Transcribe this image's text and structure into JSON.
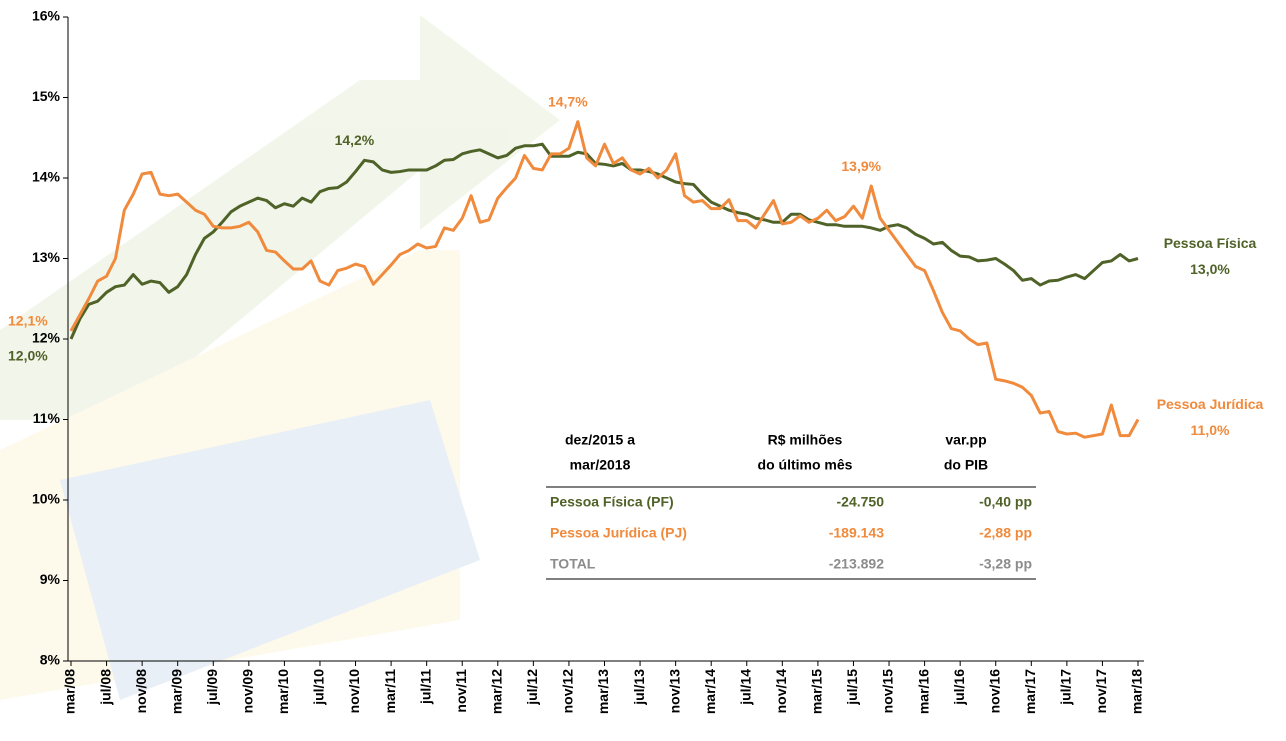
{
  "chart_data": {
    "type": "line",
    "categories": [
      "mar/08",
      null,
      null,
      null,
      "jul/08",
      null,
      null,
      null,
      "nov/08",
      null,
      null,
      null,
      "mar/09",
      null,
      null,
      null,
      "jul/09",
      null,
      null,
      null,
      "nov/09",
      null,
      null,
      null,
      "mar/10",
      null,
      null,
      null,
      "jul/10",
      null,
      null,
      null,
      "nov/10",
      null,
      null,
      null,
      "mar/11",
      null,
      null,
      null,
      "jul/11",
      null,
      null,
      null,
      "nov/11",
      null,
      null,
      null,
      "mar/12",
      null,
      null,
      null,
      "jul/12",
      null,
      null,
      null,
      "nov/12",
      null,
      null,
      null,
      "mar/13",
      null,
      null,
      null,
      "jul/13",
      null,
      null,
      null,
      "nov/13",
      null,
      null,
      null,
      "mar/14",
      null,
      null,
      null,
      "jul/14",
      null,
      null,
      null,
      "nov/14",
      null,
      null,
      null,
      "mar/15",
      null,
      null,
      null,
      "jul/15",
      null,
      null,
      null,
      "nov/15",
      null,
      null,
      null,
      "mar/16",
      null,
      null,
      null,
      "jul/16",
      null,
      null,
      null,
      "nov/16",
      null,
      null,
      null,
      "mar/17",
      null,
      null,
      null,
      "jul/17",
      null,
      null,
      null,
      "nov/17",
      null,
      null,
      null,
      "mar/18"
    ],
    "series": [
      {
        "name": "Pessoa Física",
        "color": "#4f6228",
        "values": [
          12.0,
          12.25,
          12.43,
          12.47,
          12.58,
          12.65,
          12.67,
          12.8,
          12.68,
          12.72,
          12.7,
          12.58,
          12.65,
          12.8,
          13.05,
          13.25,
          13.33,
          13.45,
          13.58,
          13.65,
          13.7,
          13.75,
          13.72,
          13.63,
          13.68,
          13.65,
          13.75,
          13.7,
          13.83,
          13.87,
          13.88,
          13.95,
          14.08,
          14.22,
          14.2,
          14.1,
          14.07,
          14.08,
          14.1,
          14.1,
          14.1,
          14.15,
          14.22,
          14.23,
          14.3,
          14.33,
          14.35,
          14.3,
          14.25,
          14.28,
          14.37,
          14.4,
          14.4,
          14.42,
          14.27,
          14.27,
          14.27,
          14.32,
          14.3,
          14.18,
          14.17,
          14.15,
          14.18,
          14.1,
          14.1,
          14.08,
          14.05,
          14.0,
          13.95,
          13.93,
          13.92,
          13.8,
          13.7,
          13.65,
          13.6,
          13.57,
          13.55,
          13.5,
          13.48,
          13.45,
          13.45,
          13.55,
          13.55,
          13.48,
          13.45,
          13.42,
          13.42,
          13.4,
          13.4,
          13.4,
          13.38,
          13.35,
          13.4,
          13.42,
          13.38,
          13.3,
          13.25,
          13.18,
          13.2,
          13.1,
          13.03,
          13.02,
          12.97,
          12.98,
          13.0,
          12.93,
          12.85,
          12.73,
          12.75,
          12.67,
          12.72,
          12.73,
          12.77,
          12.8,
          12.75,
          12.85,
          12.95,
          12.97,
          13.05,
          12.97,
          13.0
        ],
        "value_labels": [
          "12,0%",
          null,
          null,
          null,
          null,
          null,
          null,
          null,
          null,
          null,
          null,
          null,
          null,
          null,
          null,
          null,
          null,
          null,
          null,
          null,
          null,
          null,
          null,
          null,
          null,
          null,
          null,
          null,
          null,
          null,
          null,
          null,
          null,
          "14,2%",
          null,
          null,
          null,
          null,
          null,
          null,
          null,
          null,
          null,
          null,
          null,
          null,
          null,
          null,
          null,
          null,
          null,
          null,
          null,
          null,
          null,
          null,
          null,
          null,
          null,
          null,
          null,
          null,
          null,
          null,
          null,
          null,
          null,
          null,
          null,
          null,
          null,
          null,
          null,
          null,
          null,
          null,
          null,
          null,
          null,
          null,
          null,
          null,
          null,
          null,
          null,
          null,
          null,
          null,
          null,
          null,
          null,
          null,
          null,
          null,
          null,
          null,
          null,
          null,
          null,
          null,
          null,
          null,
          null,
          null,
          null,
          null,
          null,
          null,
          null,
          null,
          null,
          null,
          null,
          null,
          null,
          null,
          null,
          null,
          null,
          null,
          "13,0%"
        ]
      },
      {
        "name": "Pessoa Jurídica",
        "color": "#f08a3c",
        "values": [
          12.1,
          12.3,
          12.5,
          12.72,
          12.78,
          13.0,
          13.6,
          13.8,
          14.05,
          14.07,
          13.8,
          13.78,
          13.8,
          13.7,
          13.6,
          13.55,
          13.4,
          13.38,
          13.38,
          13.4,
          13.45,
          13.33,
          13.1,
          13.08,
          12.97,
          12.87,
          12.87,
          12.97,
          12.72,
          12.67,
          12.85,
          12.88,
          12.93,
          12.9,
          12.68,
          12.8,
          12.92,
          13.05,
          13.1,
          13.18,
          13.13,
          13.15,
          13.38,
          13.35,
          13.5,
          13.78,
          13.45,
          13.48,
          13.75,
          13.88,
          14.0,
          14.28,
          14.12,
          14.1,
          14.3,
          14.3,
          14.37,
          14.7,
          14.25,
          14.15,
          14.42,
          14.18,
          14.25,
          14.1,
          14.05,
          14.12,
          14.0,
          14.1,
          14.3,
          13.78,
          13.7,
          13.72,
          13.62,
          13.62,
          13.73,
          13.47,
          13.47,
          13.38,
          13.55,
          13.72,
          13.43,
          13.45,
          13.53,
          13.45,
          13.5,
          13.6,
          13.47,
          13.52,
          13.65,
          13.5,
          13.9,
          13.5,
          13.35,
          13.2,
          13.05,
          12.9,
          12.85,
          12.6,
          12.33,
          12.13,
          12.1,
          12.0,
          11.93,
          11.95,
          11.5,
          11.48,
          11.45,
          11.4,
          11.3,
          11.08,
          11.1,
          10.85,
          10.82,
          10.83,
          10.78,
          10.8,
          10.82,
          11.18,
          10.8,
          10.8,
          11.0
        ],
        "value_labels": [
          "12,1%",
          null,
          null,
          null,
          null,
          null,
          null,
          null,
          null,
          null,
          null,
          null,
          null,
          null,
          null,
          null,
          null,
          null,
          null,
          null,
          null,
          null,
          null,
          null,
          null,
          null,
          null,
          null,
          null,
          null,
          null,
          null,
          null,
          null,
          null,
          null,
          null,
          null,
          null,
          null,
          null,
          null,
          null,
          null,
          null,
          null,
          null,
          null,
          null,
          null,
          null,
          null,
          null,
          null,
          null,
          null,
          null,
          "14,7%",
          null,
          null,
          null,
          null,
          null,
          null,
          null,
          null,
          null,
          null,
          null,
          null,
          null,
          null,
          null,
          null,
          null,
          null,
          null,
          null,
          null,
          null,
          null,
          null,
          null,
          null,
          null,
          null,
          null,
          null,
          null,
          null,
          "13,9%",
          null,
          null,
          null,
          null,
          null,
          null,
          null,
          null,
          null,
          null,
          null,
          null,
          null,
          null,
          null,
          null,
          null,
          null,
          null,
          null,
          null,
          null,
          null,
          null,
          null,
          null,
          null,
          null,
          null,
          "11,0%"
        ]
      }
    ],
    "ylim": [
      8,
      16
    ],
    "yticks": [
      {
        "value": 8,
        "label": "8%"
      },
      {
        "value": 9,
        "label": "9%"
      },
      {
        "value": 10,
        "label": "10%"
      },
      {
        "value": 11,
        "label": "11%"
      },
      {
        "value": 12,
        "label": "12%"
      },
      {
        "value": 13,
        "label": "13%"
      },
      {
        "value": 14,
        "label": "14%"
      },
      {
        "value": 15,
        "label": "15%"
      },
      {
        "value": 16,
        "label": "16%"
      }
    ],
    "grid": false
  },
  "table": {
    "header": [
      [
        "dez/2015 a",
        "mar/2018"
      ],
      [
        "R$ milhões",
        "do último mês"
      ],
      [
        "var.pp",
        "do PIB"
      ]
    ],
    "rows": [
      [
        "Pessoa Física (PF)",
        "-24.750",
        "-0,40 pp"
      ],
      [
        "Pessoa Jurídica (PJ)",
        "-189.143",
        "-2,88 pp"
      ],
      [
        "TOTAL",
        "-213.892",
        "-3,28 pp"
      ]
    ],
    "row_colors": [
      "#4f6228",
      "#f08a3c",
      "#8c8c8c"
    ]
  }
}
